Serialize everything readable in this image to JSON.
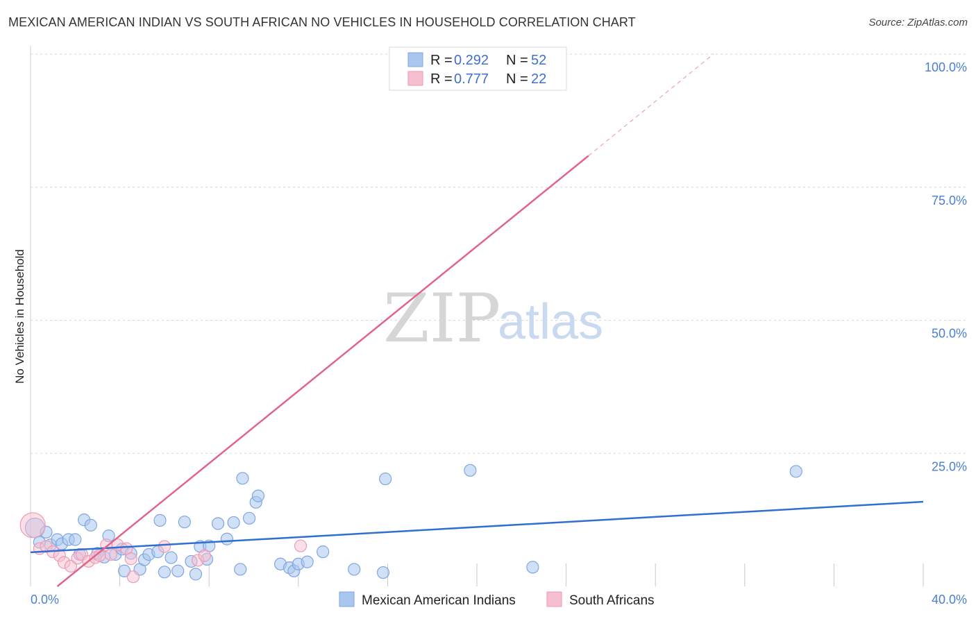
{
  "header": {
    "title": "MEXICAN AMERICAN INDIAN VS SOUTH AFRICAN NO VEHICLES IN HOUSEHOLD CORRELATION CHART",
    "source": "Source: ZipAtlas.com"
  },
  "watermark": {
    "zip": "ZIP",
    "atlas": "atlas"
  },
  "legend_top": {
    "rows": [
      {
        "r_label": "R = ",
        "r_value": "0.292",
        "n_label": "N = ",
        "n_value": "52"
      },
      {
        "r_label": "R = ",
        "r_value": "0.777",
        "n_label": "N = ",
        "n_value": "22"
      }
    ]
  },
  "colors": {
    "blue_fill": "#a9c6ef",
    "blue_stroke": "#7ea6e0",
    "blue_line": "#2f6fcf",
    "pink_fill": "#f6bfd0",
    "pink_stroke": "#ee9ab4",
    "pink_line": "#e0648c",
    "grid": "#d5d5d5",
    "tick_text": "#4a7fd4"
  },
  "chart_data": {
    "type": "scatter",
    "title": "MEXICAN AMERICAN INDIAN VS SOUTH AFRICAN NO VEHICLES IN HOUSEHOLD CORRELATION CHART",
    "xlabel": "",
    "ylabel": "No Vehicles in Household",
    "xlim": [
      0,
      40
    ],
    "ylim": [
      0,
      100
    ],
    "x_tick_labels": [
      {
        "value": 0,
        "label": "0.0%"
      },
      {
        "value": 40,
        "label": "40.0%"
      }
    ],
    "y_tick_labels": [
      {
        "value": 25,
        "label": "25.0%"
      },
      {
        "value": 50,
        "label": "50.0%"
      },
      {
        "value": 75,
        "label": "75.0%"
      },
      {
        "value": 100,
        "label": "100.0%"
      }
    ],
    "x_gridlines": [
      4,
      8,
      12,
      16,
      20,
      24,
      28,
      32,
      36,
      40
    ],
    "y_gridlines": [
      25,
      50,
      75,
      100
    ],
    "series": [
      {
        "name": "Mexican American Indians",
        "color": "#a9c6ef",
        "r": 0.292,
        "n": 52,
        "trend": {
          "x0": 0,
          "y0": 6.4,
          "x1": 40,
          "y1": 15.9
        },
        "points": [
          [
            0.2,
            11.0
          ],
          [
            0.4,
            8.3
          ],
          [
            0.7,
            10.2
          ],
          [
            0.9,
            7.8
          ],
          [
            1.2,
            8.8
          ],
          [
            1.4,
            8.0
          ],
          [
            1.7,
            8.8
          ],
          [
            2.0,
            8.8
          ],
          [
            2.2,
            6.0
          ],
          [
            2.4,
            12.5
          ],
          [
            2.7,
            11.5
          ],
          [
            3.0,
            6.2
          ],
          [
            3.3,
            5.5
          ],
          [
            3.5,
            9.5
          ],
          [
            3.8,
            6.0
          ],
          [
            4.1,
            7.0
          ],
          [
            4.2,
            2.9
          ],
          [
            4.5,
            6.2
          ],
          [
            4.9,
            3.2
          ],
          [
            5.1,
            5.0
          ],
          [
            5.3,
            6.0
          ],
          [
            5.7,
            6.5
          ],
          [
            5.8,
            12.4
          ],
          [
            6.0,
            2.7
          ],
          [
            6.3,
            5.4
          ],
          [
            6.6,
            2.9
          ],
          [
            6.9,
            12.1
          ],
          [
            7.2,
            4.7
          ],
          [
            7.4,
            2.3
          ],
          [
            7.6,
            7.5
          ],
          [
            7.9,
            5.1
          ],
          [
            8.0,
            7.6
          ],
          [
            8.4,
            11.8
          ],
          [
            8.8,
            8.9
          ],
          [
            9.1,
            12.0
          ],
          [
            9.4,
            3.2
          ],
          [
            9.5,
            20.3
          ],
          [
            9.8,
            12.8
          ],
          [
            10.1,
            15.8
          ],
          [
            10.2,
            17.0
          ],
          [
            11.2,
            4.2
          ],
          [
            11.6,
            3.5
          ],
          [
            11.8,
            2.9
          ],
          [
            12.0,
            4.2
          ],
          [
            12.4,
            4.6
          ],
          [
            13.1,
            6.5
          ],
          [
            14.5,
            3.2
          ],
          [
            15.8,
            2.6
          ],
          [
            15.9,
            20.2
          ],
          [
            19.7,
            21.8
          ],
          [
            22.5,
            3.6
          ],
          [
            34.3,
            21.6
          ]
        ]
      },
      {
        "name": "South Africans",
        "color": "#f6bfd0",
        "r": 0.777,
        "n": 22,
        "trend": {
          "x0": 1.2,
          "y0": 0,
          "x1": 25.0,
          "y1": 80.9
        },
        "trend_dashed_ext": {
          "x0": 25.0,
          "y0": 80.9,
          "x1": 30.6,
          "y1": 100
        },
        "points": [
          [
            0.1,
            11.5
          ],
          [
            0.4,
            7.1
          ],
          [
            0.7,
            7.5
          ],
          [
            1.0,
            6.5
          ],
          [
            1.3,
            5.8
          ],
          [
            1.5,
            4.5
          ],
          [
            1.8,
            3.8
          ],
          [
            2.1,
            5.3
          ],
          [
            2.3,
            6.0
          ],
          [
            2.6,
            4.7
          ],
          [
            2.9,
            5.4
          ],
          [
            3.1,
            5.8
          ],
          [
            3.4,
            7.8
          ],
          [
            3.6,
            6.0
          ],
          [
            3.9,
            7.8
          ],
          [
            4.3,
            7.1
          ],
          [
            4.5,
            5.2
          ],
          [
            4.6,
            1.8
          ],
          [
            6.0,
            7.5
          ],
          [
            7.5,
            4.9
          ],
          [
            7.8,
            5.8
          ],
          [
            12.1,
            7.6
          ]
        ]
      }
    ]
  },
  "bottom_legend": {
    "items": [
      {
        "label": "Mexican American Indians"
      },
      {
        "label": "South Africans"
      }
    ]
  }
}
